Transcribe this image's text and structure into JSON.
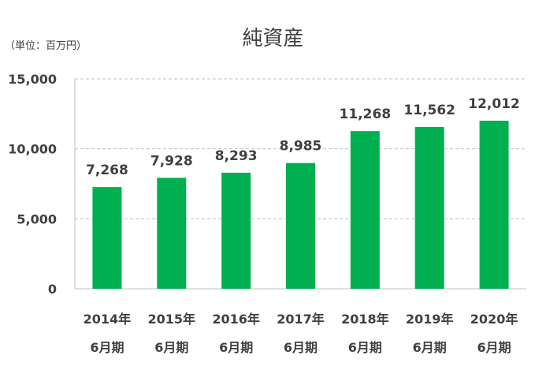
{
  "chart_data": {
    "type": "bar",
    "title": "純資産",
    "unit_label": "（単位：百万円）",
    "categories": [
      [
        "2014年",
        "6月期"
      ],
      [
        "2015年",
        "6月期"
      ],
      [
        "2016年",
        "6月期"
      ],
      [
        "2017年",
        "6月期"
      ],
      [
        "2018年",
        "6月期"
      ],
      [
        "2019年",
        "6月期"
      ],
      [
        "2020年",
        "6月期"
      ]
    ],
    "values": [
      7268,
      7928,
      8293,
      8985,
      11268,
      11562,
      12012
    ],
    "value_labels": [
      "7,268",
      "7,928",
      "8,293",
      "8,985",
      "11,268",
      "11,562",
      "12,012"
    ],
    "ylim": [
      0,
      15000
    ],
    "yticks": [
      0,
      5000,
      10000,
      15000
    ],
    "ytick_labels": [
      "0",
      "5,000",
      "10,000",
      "15,000"
    ],
    "grid": true,
    "colors": {
      "bar": "#00b050",
      "grid": "#bfbfbf",
      "axis": "#bfbfbf",
      "text": "#404040"
    }
  }
}
